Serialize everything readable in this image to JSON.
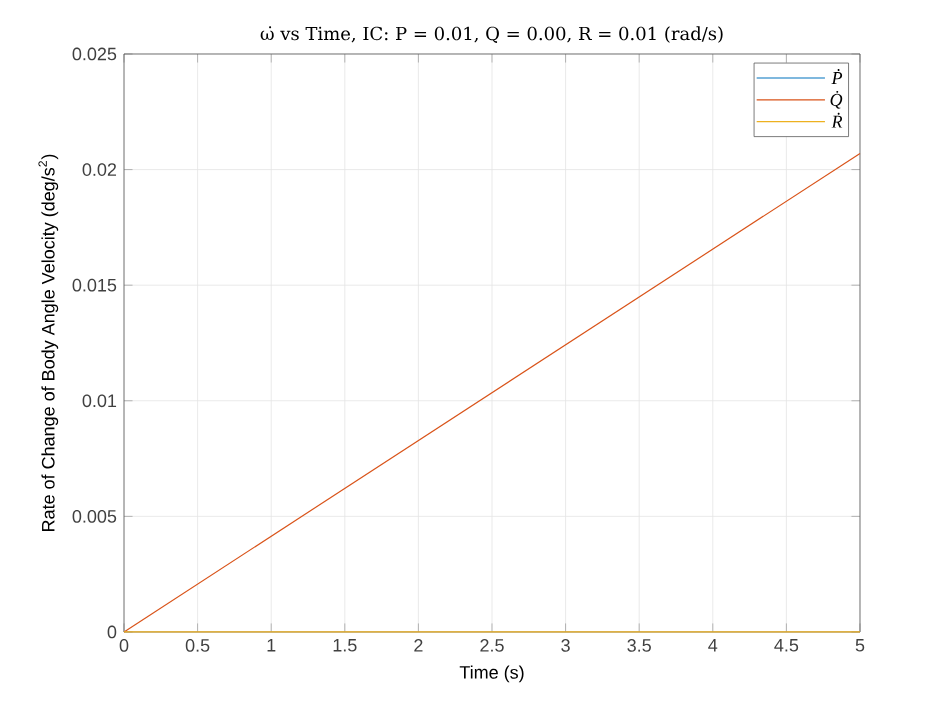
{
  "chart_data": {
    "type": "line",
    "title": "ω̇ vs Time, IC: P = 0.01, Q = 0.00, R = 0.01 (rad/s)",
    "xlabel": "Time (s)",
    "ylabel": "Rate of Change of Body Angle Velocity (deg/s$^{2}$)",
    "x": [
      0,
      5
    ],
    "series": [
      {
        "name": "Ṗ",
        "color": "#0072bd",
        "values": [
          null,
          null
        ]
      },
      {
        "name": "Q̇",
        "color": "#d95319",
        "values": [
          0,
          0.0207
        ]
      },
      {
        "name": "Ṙ",
        "color": "#edb120",
        "values": [
          0,
          0
        ]
      }
    ],
    "xlim": [
      0,
      5
    ],
    "ylim": [
      0,
      0.025
    ],
    "xticks": [
      0,
      0.5,
      1,
      1.5,
      2,
      2.5,
      3,
      3.5,
      4,
      4.5,
      5
    ],
    "yticks": [
      0,
      0.005,
      0.01,
      0.015,
      0.02,
      0.025
    ],
    "grid": true,
    "legend": "top right",
    "line_style": "solid",
    "marker": "none"
  }
}
